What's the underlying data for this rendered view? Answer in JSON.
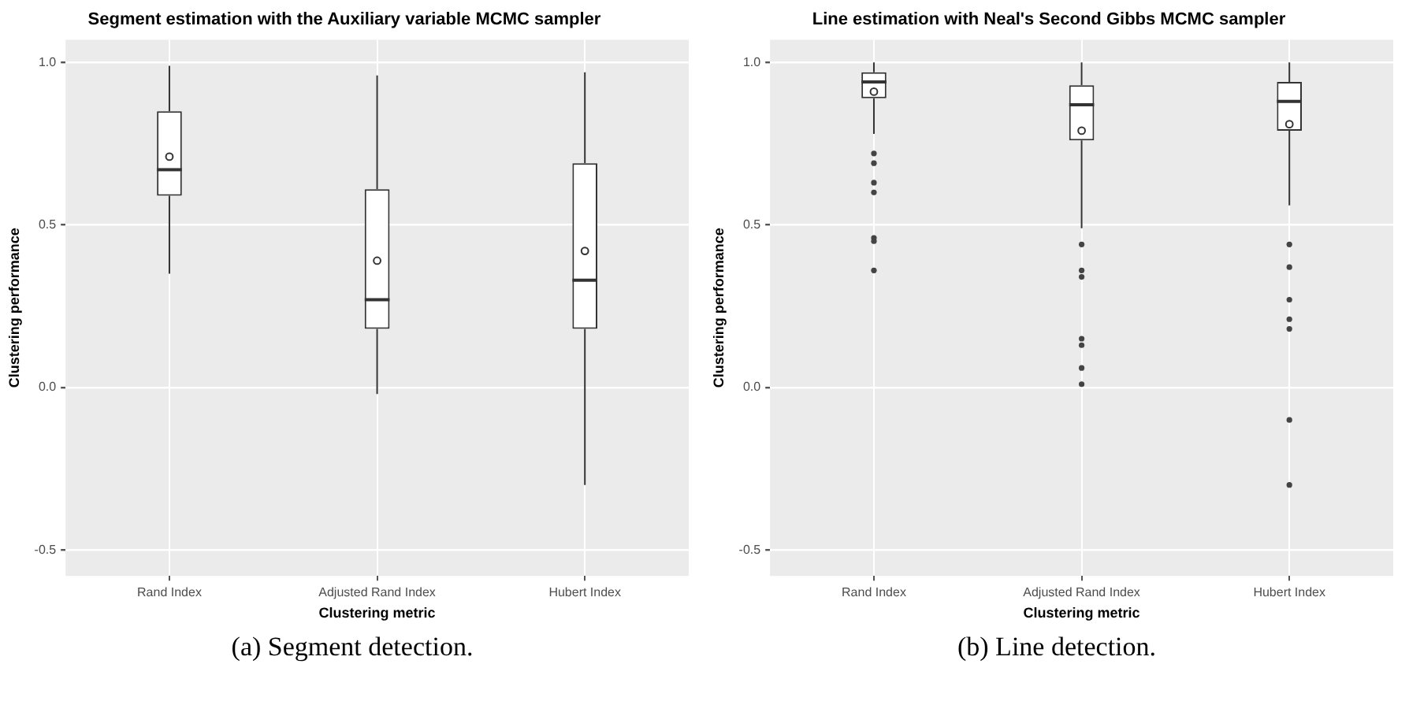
{
  "chart_data": [
    {
      "type": "box",
      "title": "Segment estimation with the Auxiliary variable MCMC sampler",
      "xlabel": "Clustering metric",
      "ylabel": "Clustering performance",
      "categories": [
        "Rand Index",
        "Adjusted Rand Index",
        "Hubert Index"
      ],
      "boxes": [
        {
          "low": 0.35,
          "q1": 0.59,
          "median": 0.67,
          "q3": 0.85,
          "high": 0.99,
          "mean": 0.71
        },
        {
          "low": -0.02,
          "q1": 0.18,
          "median": 0.27,
          "q3": 0.61,
          "high": 0.96,
          "mean": 0.39
        },
        {
          "low": -0.3,
          "q1": 0.18,
          "median": 0.33,
          "q3": 0.69,
          "high": 0.97,
          "mean": 0.42
        }
      ],
      "ylim": [
        -0.58,
        1.07
      ],
      "yticks": [
        {
          "value": -0.5,
          "label": "-0.5"
        },
        {
          "value": 0,
          "label": "0.0"
        },
        {
          "value": 0.5,
          "label": "0.5"
        },
        {
          "value": 1,
          "label": "1.0"
        }
      ],
      "grid": true,
      "annotations": [
        "(a) Segment detection."
      ]
    },
    {
      "type": "box",
      "title": "Line estimation with Neal's Second Gibbs MCMC sampler",
      "xlabel": "Clustering metric",
      "ylabel": "Clustering performance",
      "categories": [
        "Rand Index",
        "Adjusted Rand Index",
        "Hubert Index"
      ],
      "boxes": [
        {
          "low": 0.78,
          "q1": 0.89,
          "median": 0.94,
          "q3": 0.97,
          "high": 1.0,
          "mean": 0.91,
          "outliers": [
            0.72,
            0.69,
            0.63,
            0.6,
            0.46,
            0.45,
            0.36
          ]
        },
        {
          "low": 0.49,
          "q1": 0.76,
          "median": 0.87,
          "q3": 0.93,
          "high": 1.0,
          "mean": 0.79,
          "outliers": [
            0.44,
            0.36,
            0.34,
            0.15,
            0.13,
            0.06,
            0.01
          ]
        },
        {
          "low": 0.56,
          "q1": 0.79,
          "median": 0.88,
          "q3": 0.94,
          "high": 1.0,
          "mean": 0.81,
          "outliers": [
            0.44,
            0.37,
            0.27,
            0.21,
            0.18,
            -0.1,
            -0.3
          ]
        }
      ],
      "ylim": [
        -0.58,
        1.07
      ],
      "yticks": [
        {
          "value": -0.5,
          "label": "-0.5"
        },
        {
          "value": 0,
          "label": "0.0"
        },
        {
          "value": 0.5,
          "label": "0.5"
        },
        {
          "value": 1,
          "label": "1.0"
        }
      ],
      "grid": true,
      "annotations": [
        "(b) Line detection."
      ]
    }
  ]
}
